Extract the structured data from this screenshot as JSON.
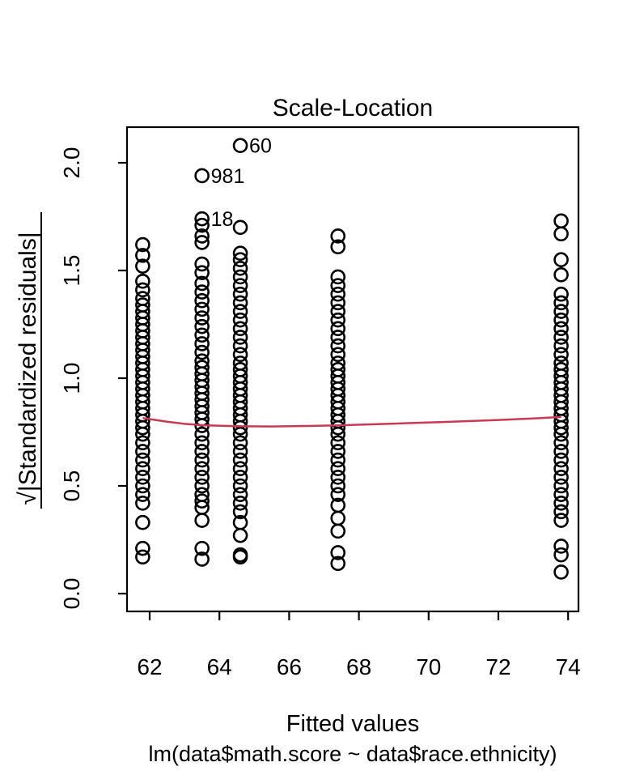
{
  "title": "Scale-Location",
  "xlabel": "Fitted values",
  "model_label": "lm(data$math.score ~ data$race.ethnicity)",
  "ylabel_sqrt": "√",
  "ylabel_body": "|Standardized residuals|",
  "colors": {
    "points": "#000000",
    "smooth_line": "#c93a52",
    "axis": "#000000",
    "background": "#ffffff"
  },
  "chart_data": {
    "type": "scatter",
    "title": "Scale-Location",
    "xlabel": "Fitted values",
    "sublabel": "lm(data$math.score ~ data$race.ethnicity)",
    "ylabel": "√|Standardized residuals|",
    "xlim": [
      61.35,
      74.3
    ],
    "ylim": [
      -0.08,
      2.17
    ],
    "xticks": [
      62,
      64,
      66,
      68,
      70,
      72,
      74
    ],
    "yticks": [
      "0.0",
      "0.5",
      "1.0",
      "1.5",
      "2.0"
    ],
    "grid": false,
    "marker": "open-circle",
    "columns": [
      {
        "fitted": 61.8,
        "values": [
          1.62,
          1.57,
          1.52,
          1.45,
          1.41,
          1.37,
          1.34,
          1.31,
          1.28,
          1.25,
          1.22,
          1.19,
          1.16,
          1.13,
          1.1,
          1.07,
          1.04,
          1.01,
          0.98,
          0.95,
          0.92,
          0.89,
          0.86,
          0.83,
          0.8,
          0.77,
          0.74,
          0.7,
          0.66,
          0.62,
          0.58,
          0.54,
          0.5,
          0.46,
          0.42,
          0.33,
          0.21,
          0.17
        ]
      },
      {
        "fitted": 63.5,
        "values": [
          1.71,
          1.66,
          1.63,
          1.53,
          1.49,
          1.44,
          1.4,
          1.36,
          1.32,
          1.28,
          1.24,
          1.2,
          1.16,
          1.12,
          1.08,
          1.05,
          1.02,
          0.99,
          0.96,
          0.93,
          0.9,
          0.87,
          0.84,
          0.81,
          0.78,
          0.74,
          0.7,
          0.66,
          0.62,
          0.58,
          0.54,
          0.5,
          0.46,
          0.43,
          0.4,
          0.34,
          0.21,
          0.16
        ]
      },
      {
        "fitted": 64.6,
        "values": [
          1.7,
          1.58,
          1.55,
          1.51,
          1.47,
          1.43,
          1.39,
          1.35,
          1.31,
          1.27,
          1.23,
          1.19,
          1.15,
          1.11,
          1.07,
          1.04,
          1.01,
          0.98,
          0.95,
          0.92,
          0.89,
          0.86,
          0.83,
          0.8,
          0.77,
          0.74,
          0.7,
          0.66,
          0.62,
          0.58,
          0.54,
          0.5,
          0.46,
          0.42,
          0.38,
          0.33,
          0.27,
          0.18,
          0.17
        ]
      },
      {
        "fitted": 67.4,
        "values": [
          1.66,
          1.61,
          1.47,
          1.43,
          1.39,
          1.35,
          1.31,
          1.27,
          1.23,
          1.19,
          1.15,
          1.11,
          1.07,
          1.04,
          1.01,
          0.98,
          0.95,
          0.92,
          0.89,
          0.86,
          0.83,
          0.8,
          0.77,
          0.74,
          0.7,
          0.66,
          0.62,
          0.58,
          0.54,
          0.5,
          0.46,
          0.41,
          0.35,
          0.29,
          0.19,
          0.14
        ]
      },
      {
        "fitted": 73.8,
        "values": [
          1.73,
          1.67,
          1.55,
          1.48,
          1.39,
          1.35,
          1.31,
          1.27,
          1.23,
          1.19,
          1.15,
          1.11,
          1.07,
          1.04,
          1.01,
          0.98,
          0.95,
          0.92,
          0.89,
          0.86,
          0.83,
          0.8,
          0.77,
          0.74,
          0.7,
          0.66,
          0.62,
          0.58,
          0.54,
          0.5,
          0.46,
          0.42,
          0.38,
          0.34,
          0.22,
          0.18,
          0.1
        ]
      }
    ],
    "labeled_points": [
      {
        "label": "60",
        "x": 64.6,
        "y": 2.08
      },
      {
        "label": "981",
        "x": 63.5,
        "y": 1.94
      },
      {
        "label": "18",
        "x": 63.5,
        "y": 1.74
      }
    ],
    "smooth_line": {
      "color": "#c93a52",
      "points": [
        [
          61.8,
          0.815
        ],
        [
          62.5,
          0.798
        ],
        [
          63.0,
          0.788
        ],
        [
          63.6,
          0.781
        ],
        [
          64.6,
          0.777
        ],
        [
          65.5,
          0.776
        ],
        [
          66.5,
          0.778
        ],
        [
          67.4,
          0.781
        ],
        [
          69.0,
          0.789
        ],
        [
          70.5,
          0.797
        ],
        [
          72.0,
          0.806
        ],
        [
          73.0,
          0.813
        ],
        [
          73.8,
          0.82
        ]
      ],
      "legend": "smoother"
    }
  }
}
